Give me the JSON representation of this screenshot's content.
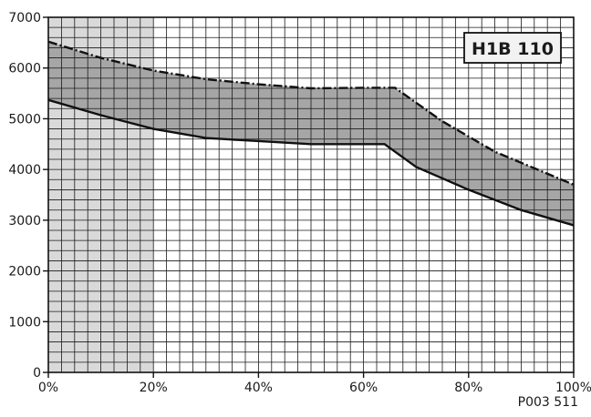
{
  "chart_data": {
    "type": "area",
    "title": "",
    "xlabel": "",
    "ylabel": "",
    "badge": "H1B 110",
    "figure_code": "P003 511",
    "xlim": [
      0,
      100
    ],
    "ylim": [
      0,
      7000
    ],
    "x_ticks": [
      0,
      20,
      40,
      60,
      80,
      100
    ],
    "x_tick_labels": [
      "0%",
      "20%",
      "40%",
      "60%",
      "80%",
      "100%"
    ],
    "y_ticks": [
      0,
      1000,
      2000,
      3000,
      4000,
      5000,
      6000,
      7000
    ],
    "y_tick_labels": [
      "0",
      "1000",
      "2000",
      "3000",
      "4000",
      "5000",
      "6000",
      "7000"
    ],
    "grid": true,
    "shaded_region": {
      "x_from": 0,
      "x_to": 20,
      "color": "#d9d9d9"
    },
    "band_color": "#a6a6a6",
    "series": [
      {
        "style": "dash-dot",
        "x": [
          0,
          10,
          20,
          30,
          40,
          50,
          60,
          66,
          75,
          85,
          100
        ],
        "y": [
          6520,
          6200,
          5950,
          5780,
          5680,
          5600,
          5610,
          5610,
          4950,
          4350,
          3700
        ]
      },
      {
        "style": "solid",
        "x": [
          0,
          10,
          20,
          30,
          40,
          50,
          60,
          64,
          70,
          80,
          90,
          100
        ],
        "y": [
          5370,
          5070,
          4800,
          4620,
          4560,
          4500,
          4500,
          4500,
          4050,
          3600,
          3200,
          2900
        ]
      }
    ]
  }
}
